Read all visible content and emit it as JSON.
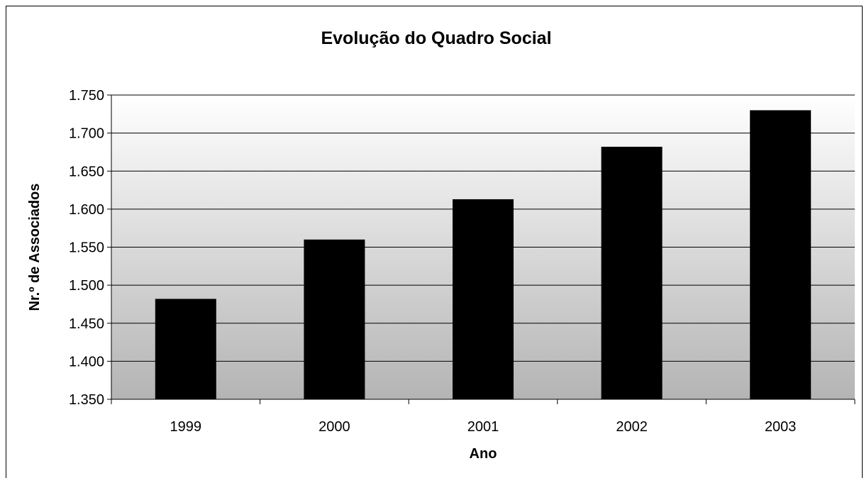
{
  "chart_data": {
    "type": "bar",
    "title": "Evolução do Quadro Social",
    "xlabel": "Ano",
    "ylabel": "Nr.º de Associados",
    "categories": [
      "1999",
      "2000",
      "2001",
      "2002",
      "2003"
    ],
    "values": [
      1482,
      1560,
      1613,
      1682,
      1730
    ],
    "ylim": [
      1350,
      1750
    ],
    "yticks": [
      1350,
      1400,
      1450,
      1500,
      1550,
      1600,
      1650,
      1700,
      1750
    ],
    "ytick_labels": [
      "1.350",
      "1.400",
      "1.450",
      "1.500",
      "1.550",
      "1.600",
      "1.650",
      "1.700",
      "1.750"
    ],
    "grid": true,
    "legend": "none",
    "bar_color": "#000000",
    "plot_background": "gradient-white-to-gray"
  }
}
